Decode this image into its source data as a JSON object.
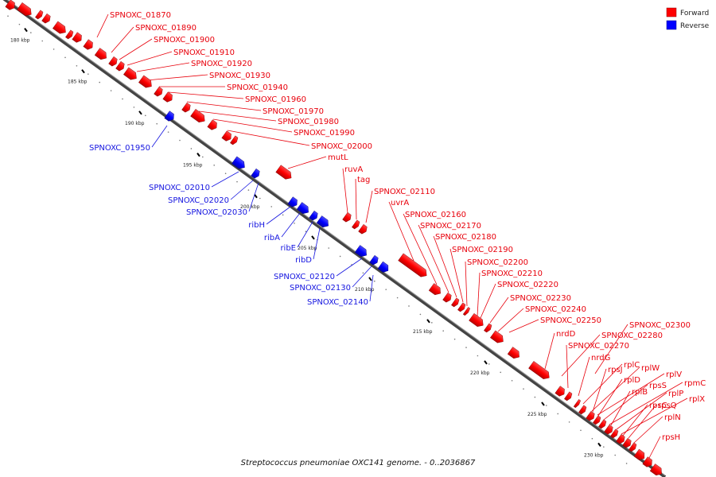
{
  "caption": "Streptococcus pneumoniae OXC141 genome. - 0..2036867",
  "legend": [
    {
      "label": "Forward",
      "color": "#ff0000"
    },
    {
      "label": "Reverse",
      "color": "#0000ff"
    }
  ],
  "ticks": [
    "180 kbp",
    "185 kbp",
    "190 kbp",
    "195 kbp",
    "200 kbp",
    "205 kbp",
    "210 kbp",
    "215 kbp",
    "220 kbp",
    "225 kbp",
    "230 kbp"
  ],
  "forward_labels": [
    "SPNOXC_01870",
    "SPNOXC_01890",
    "SPNOXC_01900",
    "SPNOXC_01910",
    "SPNOXC_01920",
    "SPNOXC_01930",
    "SPNOXC_01940",
    "SPNOXC_01960",
    "SPNOXC_01970",
    "SPNOXC_01980",
    "SPNOXC_01990",
    "SPNOXC_02000",
    "mutL",
    "ruvA",
    "tag",
    "SPNOXC_02110",
    "uvrA",
    "SPNOXC_02160",
    "SPNOXC_02170",
    "SPNOXC_02180",
    "SPNOXC_02190",
    "SPNOXC_02200",
    "SPNOXC_02210",
    "SPNOXC_02220",
    "SPNOXC_02230",
    "SPNOXC_02240",
    "SPNOXC_02250",
    "SPNOXC_02300",
    "nrdD",
    "SPNOXC_02280",
    "SPNOXC_02270",
    "nrdG",
    "rplC",
    "rplW",
    "rpsJ",
    "rplV",
    "rplD",
    "rpsS",
    "rpmC",
    "rplB",
    "rplP",
    "rplX",
    "rpsQ",
    "rpsC",
    "rplN",
    "rpsH"
  ],
  "reverse_labels": [
    "SPNOXC_01950",
    "SPNOXC_02010",
    "SPNOXC_02020",
    "SPNOXC_02030",
    "ribH",
    "ribA",
    "ribE",
    "ribD",
    "SPNOXC_02120",
    "SPNOXC_02130",
    "SPNOXC_02140"
  ]
}
